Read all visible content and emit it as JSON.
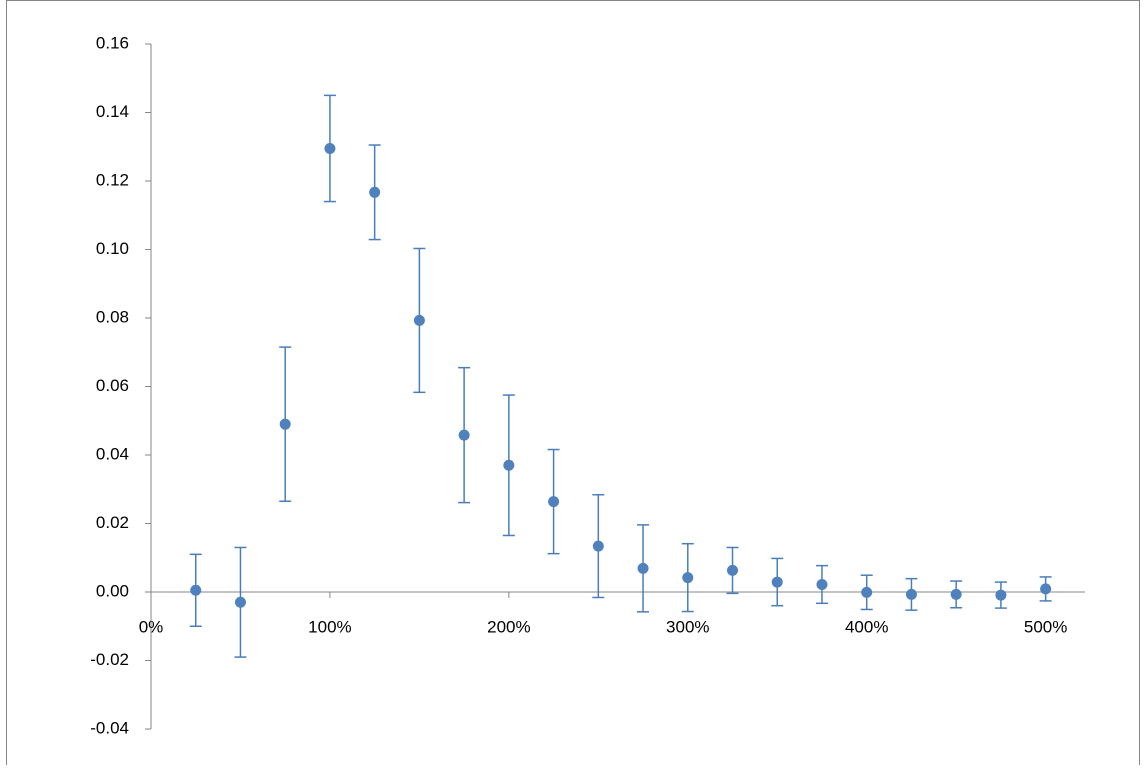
{
  "chart_data": {
    "type": "scatter",
    "x": [
      25,
      50,
      75,
      100,
      125,
      150,
      175,
      200,
      225,
      250,
      275,
      300,
      325,
      350,
      375,
      400,
      425,
      450,
      475,
      500
    ],
    "values": [
      0.0005,
      -0.003,
      0.049,
      0.1295,
      0.1167,
      0.0793,
      0.0458,
      0.037,
      0.0264,
      0.0134,
      0.0069,
      0.0042,
      0.0063,
      0.0029,
      0.0022,
      -0.0001,
      -0.0007,
      -0.0007,
      -0.0009,
      0.0009
    ],
    "errors": [
      0.0105,
      0.016,
      0.0225,
      0.0155,
      0.0138,
      0.021,
      0.0197,
      0.0205,
      0.0152,
      0.015,
      0.0127,
      0.0099,
      0.0067,
      0.0069,
      0.0055,
      0.005,
      0.0046,
      0.0039,
      0.0038,
      0.0035
    ],
    "color": "#4f81bd",
    "xlim": [
      0,
      522
    ],
    "xticks": [
      {
        "value": 0,
        "label": "0%"
      },
      {
        "value": 100,
        "label": "100%"
      },
      {
        "value": 200,
        "label": "200%"
      },
      {
        "value": 300,
        "label": "300%"
      },
      {
        "value": 400,
        "label": "400%"
      },
      {
        "value": 500,
        "label": "500%"
      }
    ],
    "ylim": [
      -0.04,
      0.16
    ],
    "yticks": [
      {
        "value": -0.04,
        "label": "-0.04"
      },
      {
        "value": -0.02,
        "label": "-0.02"
      },
      {
        "value": 0,
        "label": "0.00"
      },
      {
        "value": 0.02,
        "label": "0.02"
      },
      {
        "value": 0.04,
        "label": "0.04"
      },
      {
        "value": 0.06,
        "label": "0.06"
      },
      {
        "value": 0.08,
        "label": "0.08"
      },
      {
        "value": 0.1,
        "label": "0.10"
      },
      {
        "value": 0.12,
        "label": "0.12"
      },
      {
        "value": 0.14,
        "label": "0.14"
      },
      {
        "value": 0.16,
        "label": "0.16"
      }
    ]
  }
}
